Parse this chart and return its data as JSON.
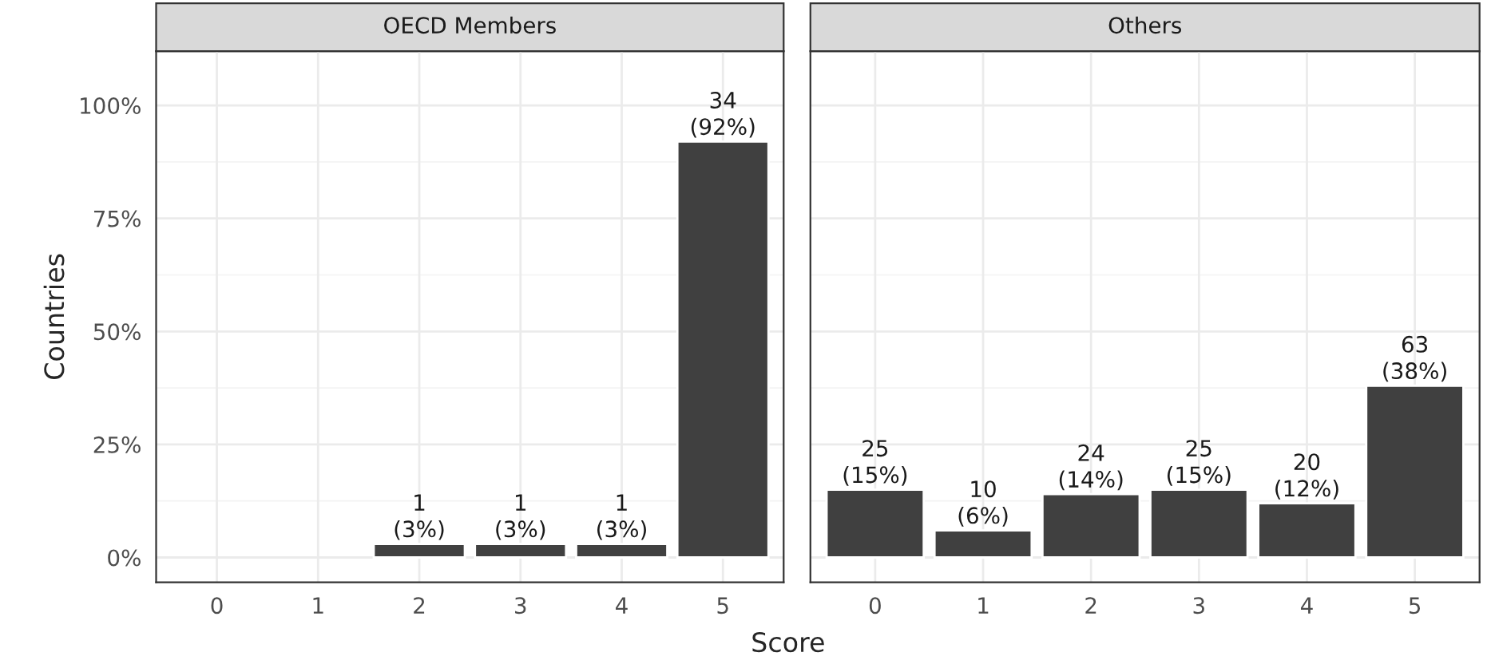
{
  "chart_data": [
    {
      "type": "bar",
      "title": "OECD Members",
      "xlabel": "Score",
      "ylabel": "Countries",
      "categories": [
        "0",
        "1",
        "2",
        "3",
        "4",
        "5"
      ],
      "color": "#404040",
      "values": [
        null,
        null,
        3,
        3,
        3,
        92
      ],
      "value_labels": [
        null,
        null,
        "1\n(3%)",
        "1\n(3%)",
        "1\n(3%)",
        "34\n(92%)"
      ],
      "ylim": [
        -5.5,
        112
      ],
      "yticks": [
        {
          "value": 0,
          "label": "0%"
        },
        {
          "value": 25,
          "label": "25%"
        },
        {
          "value": 50,
          "label": "50%"
        },
        {
          "value": 75,
          "label": "75%"
        },
        {
          "value": 100,
          "label": "100%"
        }
      ],
      "grid": true
    },
    {
      "type": "bar",
      "title": "Others",
      "categories": [
        "0",
        "1",
        "2",
        "3",
        "4",
        "5"
      ],
      "color": "#404040",
      "values": [
        15,
        6,
        14,
        15,
        12,
        38
      ],
      "value_labels": [
        "25\n(15%)",
        "10\n(6%)",
        "24\n(14%)",
        "25\n(15%)",
        "20\n(12%)",
        "63\n(38%)"
      ],
      "ylim": [
        -5.5,
        112
      ],
      "yticks": [
        {
          "value": 0,
          "label": null
        },
        {
          "value": 25,
          "label": null
        },
        {
          "value": 50,
          "label": null
        },
        {
          "value": 75,
          "label": null
        },
        {
          "value": 100,
          "label": null
        }
      ],
      "grid": true,
      "tick_labels": "x"
    }
  ]
}
